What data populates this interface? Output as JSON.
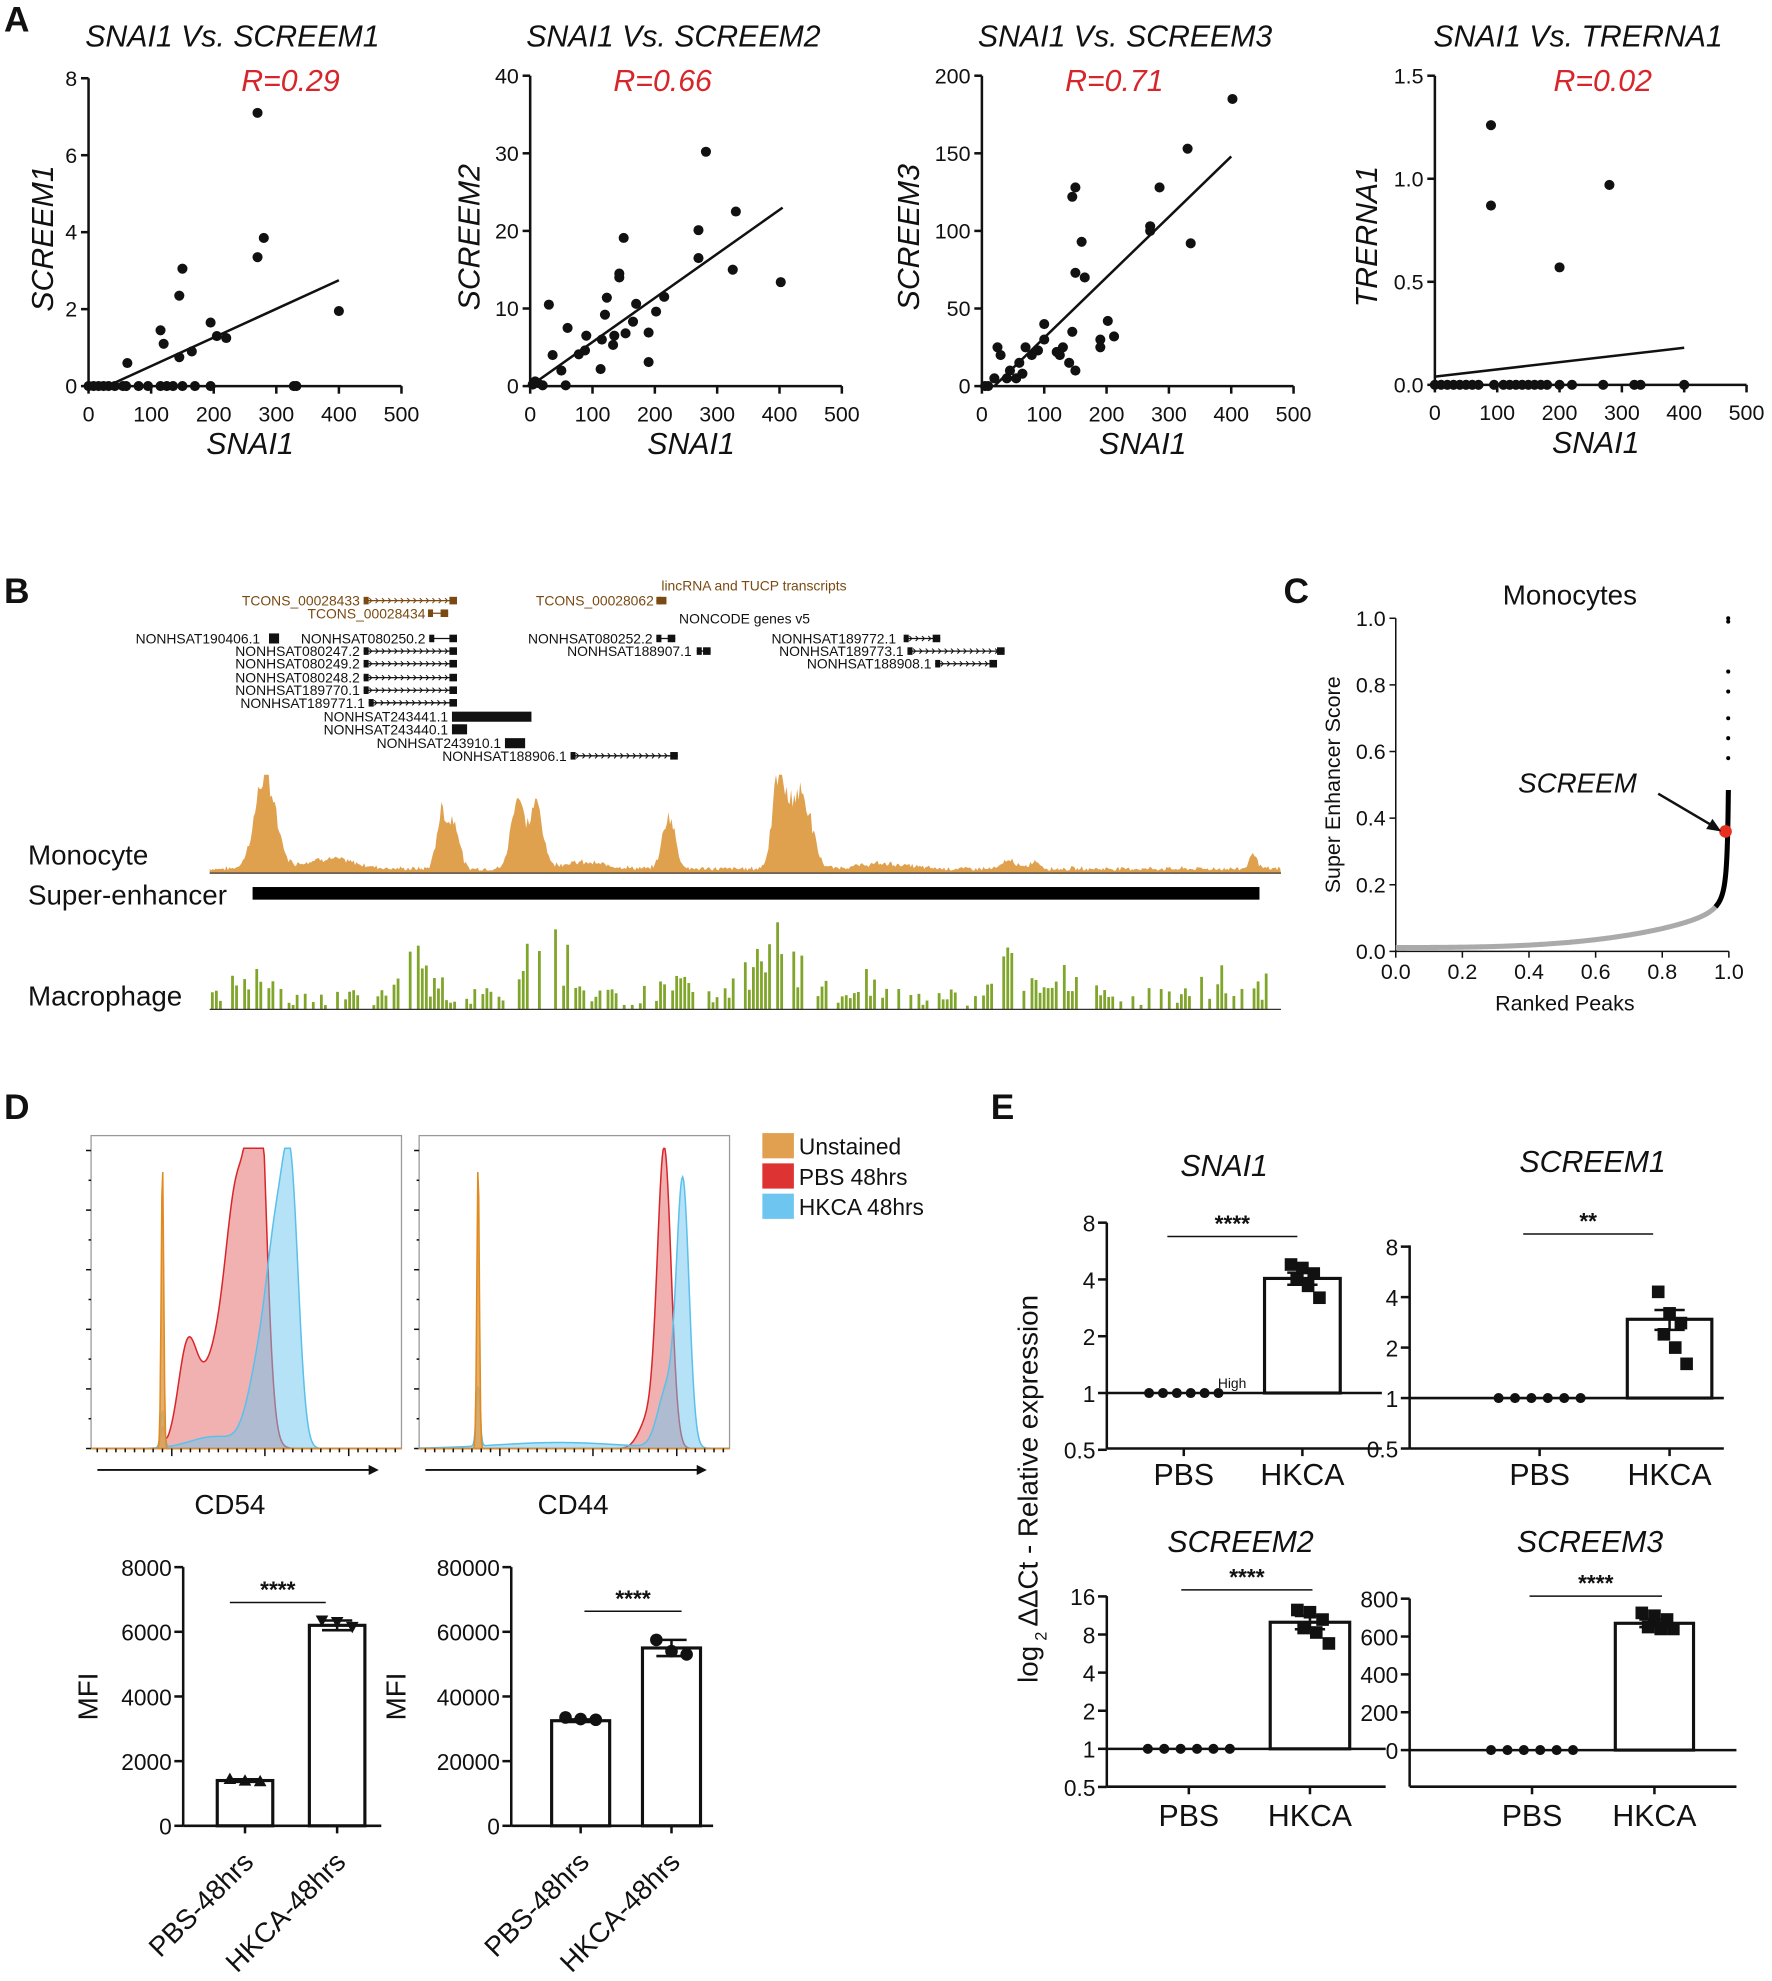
{
  "panel_labels": {
    "a": "A",
    "b": "B",
    "c": "C",
    "d": "D",
    "e": "E"
  },
  "chart_data": [
    {
      "panel": "A",
      "type": "scatter",
      "title": "SNAI1 Vs. SCREEM1",
      "r_label": "R=0.29",
      "xlabel": "SNAI1",
      "ylabel": "SCREEM1",
      "xlim": [
        0,
        500
      ],
      "ylim": [
        0,
        8
      ],
      "xticks": [
        "0",
        "100",
        "200",
        "300",
        "400",
        "500"
      ],
      "yticks": [
        "0",
        "2",
        "4",
        "6",
        "8"
      ],
      "points": [
        [
          270,
          7.1
        ],
        [
          280,
          3.85
        ],
        [
          270,
          3.35
        ],
        [
          150,
          3.05
        ],
        [
          145,
          2.35
        ],
        [
          400,
          1.95
        ],
        [
          195,
          1.65
        ],
        [
          115,
          1.45
        ],
        [
          120,
          1.1
        ],
        [
          205,
          1.3
        ],
        [
          220,
          1.25
        ],
        [
          165,
          0.9
        ],
        [
          145,
          0.75
        ],
        [
          62,
          0.6
        ],
        [
          0,
          0
        ],
        [
          8,
          0
        ],
        [
          16,
          0
        ],
        [
          24,
          0
        ],
        [
          32,
          0
        ],
        [
          42,
          0
        ],
        [
          55,
          0
        ],
        [
          60,
          0
        ],
        [
          80,
          0
        ],
        [
          95,
          0
        ],
        [
          115,
          0
        ],
        [
          125,
          0
        ],
        [
          135,
          0
        ],
        [
          150,
          0
        ],
        [
          170,
          0
        ],
        [
          195,
          0
        ],
        [
          328,
          0
        ],
        [
          332,
          0
        ]
      ],
      "fit": [
        [
          30,
          0
        ],
        [
          400,
          2.75
        ]
      ]
    },
    {
      "panel": "A",
      "type": "scatter",
      "title": "SNAI1 Vs. SCREEM2",
      "r_label": "R=0.66",
      "xlabel": "SNAI1",
      "ylabel": "SCREEM2",
      "xlim": [
        0,
        500
      ],
      "ylim": [
        0,
        40
      ],
      "xticks": [
        "0",
        "100",
        "200",
        "300",
        "400",
        "500"
      ],
      "yticks": [
        "0",
        "10",
        "20",
        "30",
        "40"
      ],
      "points": [
        [
          282,
          30.2
        ],
        [
          270,
          20.1
        ],
        [
          330,
          22.5
        ],
        [
          270,
          16.5
        ],
        [
          325,
          15
        ],
        [
          402,
          13.4
        ],
        [
          150,
          19.1
        ],
        [
          143,
          14.5
        ],
        [
          143,
          14
        ],
        [
          30,
          10.5
        ],
        [
          123,
          11.4
        ],
        [
          120,
          9.2
        ],
        [
          170,
          10.6
        ],
        [
          215,
          11.5
        ],
        [
          202,
          9.6
        ],
        [
          60,
          7.5
        ],
        [
          90,
          6.5
        ],
        [
          115,
          6
        ],
        [
          135,
          6.5
        ],
        [
          153,
          6.8
        ],
        [
          165,
          8.3
        ],
        [
          190,
          6.9
        ],
        [
          78,
          4.1
        ],
        [
          88,
          4.6
        ],
        [
          133,
          5.3
        ],
        [
          36,
          4
        ],
        [
          50,
          2
        ],
        [
          113,
          2.2
        ],
        [
          190,
          3.1
        ],
        [
          57,
          0.1
        ],
        [
          4,
          0.2
        ],
        [
          12,
          0.4
        ],
        [
          20,
          0.1
        ],
        [
          8,
          0.6
        ]
      ],
      "fit": [
        [
          0,
          0
        ],
        [
          405,
          23
        ]
      ]
    },
    {
      "panel": "A",
      "type": "scatter",
      "title": "SNAI1 Vs. SCREEM3",
      "r_label": "R=0.71",
      "xlabel": "SNAI1",
      "ylabel": "SCREEM3",
      "xlim": [
        0,
        500
      ],
      "ylim": [
        0,
        200
      ],
      "xticks": [
        "0",
        "100",
        "200",
        "300",
        "400",
        "500"
      ],
      "yticks": [
        "0",
        "50",
        "100",
        "150",
        "200"
      ],
      "points": [
        [
          402,
          185
        ],
        [
          330,
          153
        ],
        [
          285,
          128
        ],
        [
          270,
          103
        ],
        [
          270,
          100
        ],
        [
          335,
          92
        ],
        [
          150,
          128
        ],
        [
          145,
          122
        ],
        [
          160,
          93
        ],
        [
          150,
          73
        ],
        [
          165,
          70
        ],
        [
          100,
          40
        ],
        [
          202,
          42
        ],
        [
          212,
          32
        ],
        [
          190,
          30
        ],
        [
          190,
          25
        ],
        [
          145,
          35
        ],
        [
          130,
          25
        ],
        [
          120,
          22
        ],
        [
          125,
          20
        ],
        [
          140,
          15
        ],
        [
          150,
          10
        ],
        [
          100,
          30
        ],
        [
          90,
          23
        ],
        [
          80,
          20
        ],
        [
          70,
          25
        ],
        [
          60,
          15
        ],
        [
          55,
          5
        ],
        [
          65,
          8
        ],
        [
          45,
          10
        ],
        [
          30,
          20
        ],
        [
          40,
          5
        ],
        [
          25,
          25
        ],
        [
          20,
          5
        ],
        [
          10,
          0
        ],
        [
          5,
          0
        ]
      ],
      "fit": [
        [
          20,
          0
        ],
        [
          400,
          148
        ]
      ]
    },
    {
      "panel": "A",
      "type": "scatter",
      "title": "SNAI1 Vs. TRERNA1",
      "r_label": "R=0.02",
      "xlabel": "SNAI1",
      "ylabel": "TRERNA1",
      "xlim": [
        0,
        500
      ],
      "ylim": [
        0,
        1.5
      ],
      "xticks": [
        "0",
        "100",
        "200",
        "300",
        "400",
        "500"
      ],
      "yticks": [
        "0.0",
        "0.5",
        "1.0",
        "1.5"
      ],
      "points": [
        [
          90,
          1.26
        ],
        [
          90,
          0.87
        ],
        [
          280,
          0.97
        ],
        [
          200,
          0.57
        ],
        [
          0,
          0
        ],
        [
          10,
          0
        ],
        [
          20,
          0
        ],
        [
          30,
          0
        ],
        [
          40,
          0
        ],
        [
          50,
          0
        ],
        [
          60,
          0
        ],
        [
          70,
          0
        ],
        [
          95,
          0
        ],
        [
          110,
          0
        ],
        [
          120,
          0
        ],
        [
          130,
          0
        ],
        [
          140,
          0
        ],
        [
          150,
          0
        ],
        [
          160,
          0
        ],
        [
          170,
          0
        ],
        [
          180,
          0
        ],
        [
          200,
          0
        ],
        [
          220,
          0
        ],
        [
          270,
          0
        ],
        [
          320,
          0
        ],
        [
          330,
          0
        ],
        [
          400,
          0
        ]
      ],
      "fit": [
        [
          0,
          0.04
        ],
        [
          400,
          0.18
        ]
      ]
    },
    {
      "panel": "B",
      "type": "genome-track",
      "lincrna_header": "lincRNA and TUCP transcripts",
      "noncode_header": "NONCODE genes v5",
      "lincrna": [
        "TCONS_00028433",
        "TCONS_00028434",
        "TCONS_00028062"
      ],
      "noncode": [
        "NONHSAT190406.1",
        "NONHSAT080250.2",
        "NONHSAT080247.2",
        "NONHSAT080249.2",
        "NONHSAT080248.2",
        "NONHSAT189770.1",
        "NONHSAT189771.1",
        "NONHSAT243441.1",
        "NONHSAT243440.1",
        "NONHSAT243910.1",
        "NONHSAT188906.1",
        "NONHSAT080252.2",
        "NONHSAT188907.1",
        "NONHSAT189772.1",
        "NONHSAT189773.1",
        "NONHSAT188908.1"
      ],
      "tracks": {
        "monocyte": "Monocyte",
        "super_enhancer": "Super-enhancer",
        "macrophage": "Macrophage"
      },
      "colors": {
        "monocyte": "#E0A14E",
        "macrophage": "#7FA52A",
        "lincrna": "#7A4A12"
      }
    },
    {
      "panel": "C",
      "type": "line",
      "title": "Monocytes",
      "xlabel": "Ranked Peaks",
      "ylabel": "Super Enhancer Score",
      "xlim": [
        0,
        1
      ],
      "ylim": [
        0,
        1
      ],
      "xticks": [
        "0.0",
        "0.2",
        "0.4",
        "0.6",
        "0.8",
        "1.0"
      ],
      "yticks": [
        "0.0",
        "0.2",
        "0.4",
        "0.6",
        "0.8",
        "1.0"
      ],
      "highlight": {
        "label": "SCREEM",
        "x": 0.99,
        "y": 0.36,
        "color": "#E8301E"
      }
    },
    {
      "panel": "D",
      "type": "histogram",
      "xlabels": [
        "CD54",
        "CD44"
      ],
      "legend": [
        {
          "label": "Unstained",
          "color": "#E0A050"
        },
        {
          "label": "PBS 48hrs",
          "color": "#DD3333"
        },
        {
          "label": "HKCA 48hrs",
          "color": "#6EC6F0"
        }
      ]
    },
    {
      "panel": "D",
      "type": "bar",
      "marker": "CD54",
      "ylabel": "MFI",
      "ylim": [
        0,
        8000
      ],
      "yticks": [
        "0",
        "2000",
        "4000",
        "6000",
        "8000"
      ],
      "categories": [
        "PBS-48hrs",
        "HKCA-48hrs"
      ],
      "values": [
        1400,
        6200
      ],
      "errors": [
        40,
        150
      ],
      "points": [
        [
          1450,
          1400,
          1380
        ],
        [
          6350,
          6300,
          6150
        ]
      ],
      "significance": "****"
    },
    {
      "panel": "D",
      "type": "bar",
      "marker": "CD44",
      "ylabel": "MFI",
      "ylim": [
        0,
        80000
      ],
      "yticks": [
        "0",
        "20000",
        "40000",
        "60000",
        "80000"
      ],
      "categories": [
        "PBS-48hrs",
        "HKCA-48hrs"
      ],
      "values": [
        32500,
        55000
      ],
      "errors": [
        400,
        2500
      ],
      "points": [
        [
          33500,
          33000,
          32800
        ],
        [
          57500,
          54000,
          53000
        ]
      ],
      "significance": "****"
    },
    {
      "panel": "E",
      "type": "bar",
      "title": "SNAI1",
      "scale": "log2",
      "ylim": [
        0.5,
        8
      ],
      "yticks": [
        "0.5",
        "1",
        "2",
        "4",
        "8"
      ],
      "categories": [
        "PBS",
        "HKCA"
      ],
      "values": [
        1,
        4.05
      ],
      "errors": [
        0,
        0.3
      ],
      "points": [
        [
          1,
          1,
          1,
          1,
          1,
          1
        ],
        [
          4.8,
          4.6,
          4.3,
          4.0,
          3.7,
          3.2
        ]
      ],
      "significance": "****",
      "note": "High"
    },
    {
      "panel": "E",
      "type": "bar",
      "title": "SCREEM1",
      "scale": "log2",
      "ylim": [
        0.5,
        8
      ],
      "yticks": [
        "0.5",
        "1",
        "2",
        "4",
        "8"
      ],
      "categories": [
        "PBS",
        "HKCA"
      ],
      "values": [
        1,
        2.95
      ],
      "errors": [
        0,
        0.4
      ],
      "points": [
        [
          1,
          1,
          1,
          1,
          1,
          1
        ],
        [
          4.3,
          3.2,
          2.8,
          2.4,
          2.0,
          1.6
        ]
      ],
      "significance": "**"
    },
    {
      "panel": "E",
      "type": "bar",
      "title": "SCREEM2",
      "scale": "log2",
      "ylim": [
        0.5,
        16
      ],
      "yticks": [
        "0.5",
        "1",
        "2",
        "4",
        "8",
        "16"
      ],
      "categories": [
        "PBS",
        "HKCA"
      ],
      "values": [
        1,
        10
      ],
      "errors": [
        0,
        1.2
      ],
      "points": [
        [
          1,
          1,
          1,
          1,
          1,
          1
        ],
        [
          12.5,
          12,
          10.5,
          9,
          8.3,
          6.8
        ]
      ],
      "significance": "****"
    },
    {
      "panel": "E",
      "type": "bar",
      "title": "SCREEM3",
      "scale": "linear",
      "ylim": [
        -200,
        800
      ],
      "yticks": [
        "0",
        "200",
        "400",
        "600",
        "800"
      ],
      "categories": [
        "PBS",
        "HKCA"
      ],
      "values": [
        0,
        670
      ],
      "errors": [
        0,
        20
      ],
      "points": [
        [
          0,
          0,
          0,
          0,
          0,
          0
        ],
        [
          725,
          710,
          690,
          650,
          640,
          640
        ]
      ],
      "significance": "****"
    }
  ],
  "panel_e_ylabel": {
    "prefix": "log",
    "sub": "2",
    "main": "ΔΔCt - Relative expression"
  }
}
